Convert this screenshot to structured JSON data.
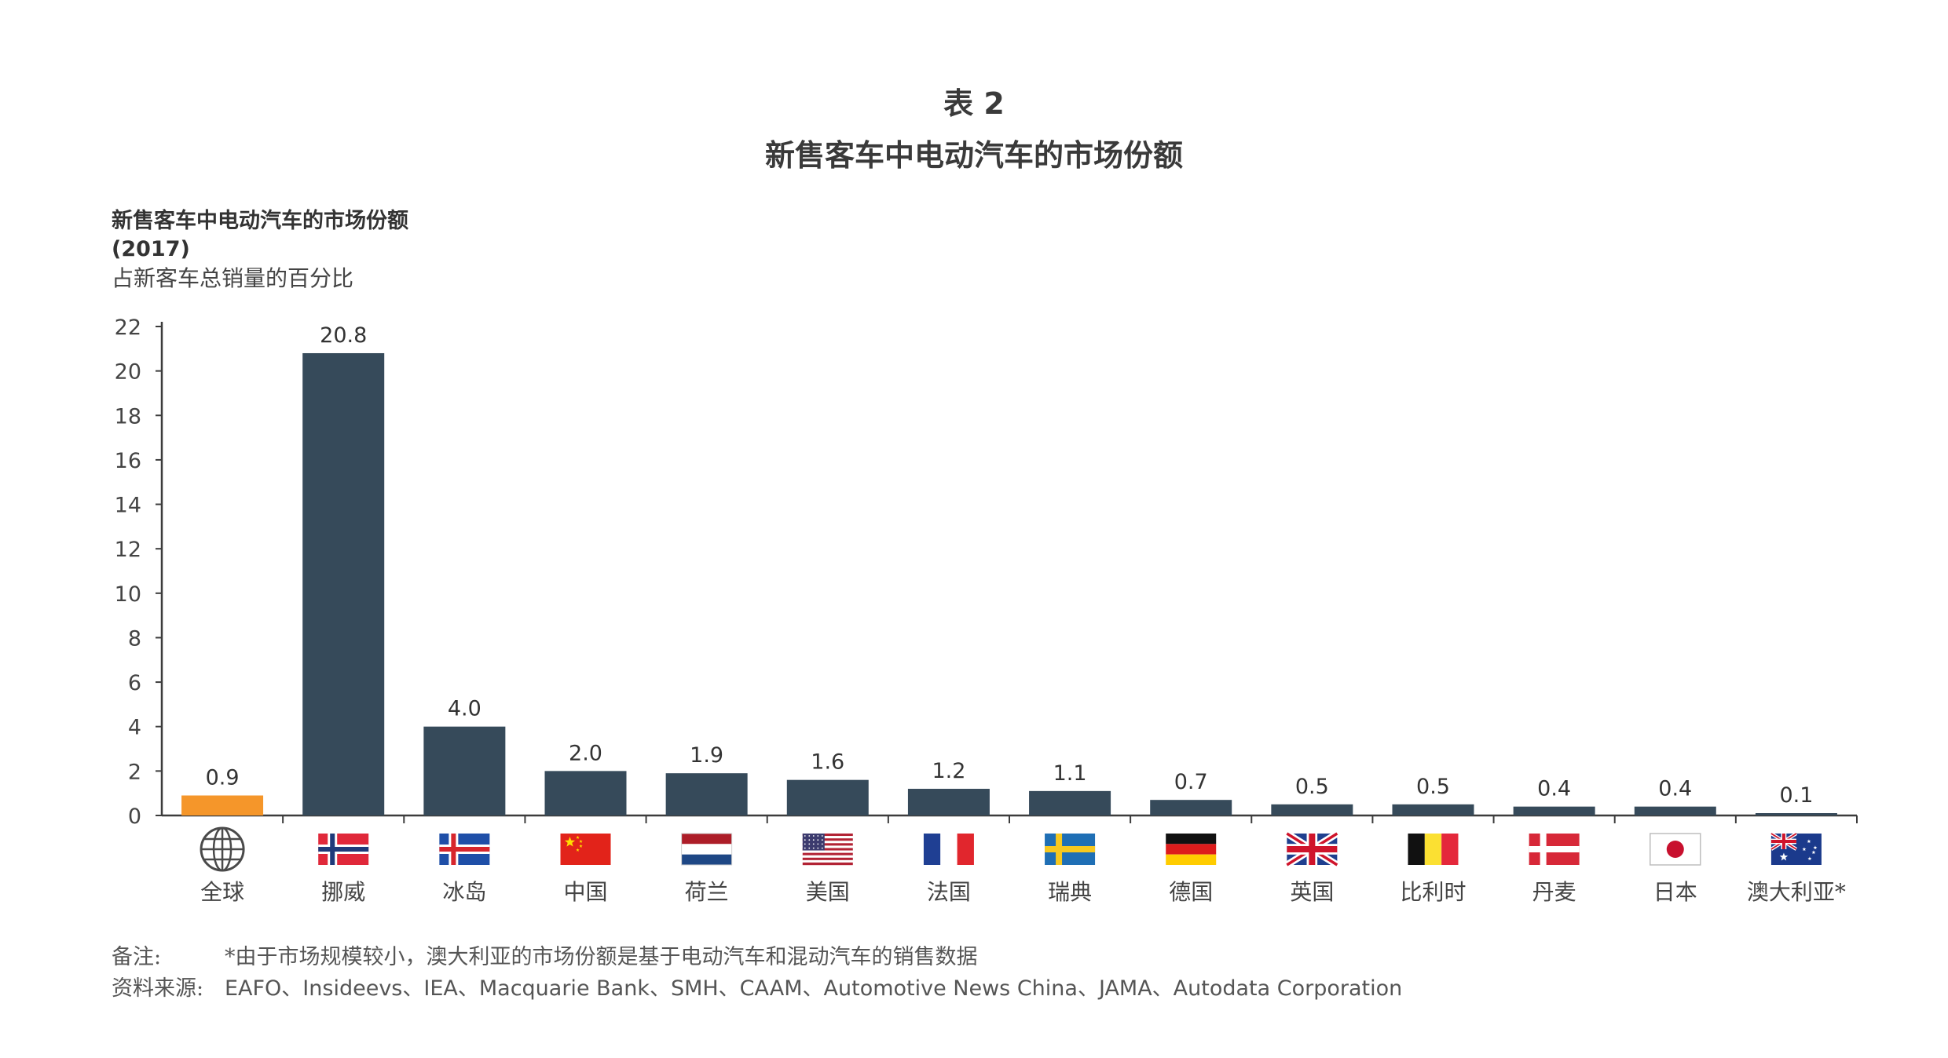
{
  "header": {
    "title_line1": "表 2",
    "title_line2": "新售客车中电动汽车的市场份额"
  },
  "subtitle": {
    "line1": "新售客车中电动汽车的市场份额",
    "line2": "(2017)",
    "line3": "占新客车总销量的百分比"
  },
  "chart_data": {
    "type": "bar",
    "title": "新售客车中电动汽车的市场份额",
    "ylabel": "",
    "xlabel": "",
    "ylim": [
      0,
      22
    ],
    "yticks": [
      0,
      2,
      4,
      6,
      8,
      10,
      12,
      14,
      16,
      18,
      20,
      22
    ],
    "categories": [
      "全球",
      "挪威",
      "冰岛",
      "中国",
      "荷兰",
      "美国",
      "法国",
      "瑞典",
      "德国",
      "英国",
      "比利时",
      "丹麦",
      "日本",
      "澳大利亚*"
    ],
    "values": [
      0.9,
      20.8,
      4.0,
      2.0,
      1.9,
      1.6,
      1.2,
      1.1,
      0.7,
      0.5,
      0.5,
      0.4,
      0.4,
      0.1
    ],
    "value_labels": [
      "0.9",
      "20.8",
      "4.0",
      "2.0",
      "1.9",
      "1.6",
      "1.2",
      "1.1",
      "0.7",
      "0.5",
      "0.5",
      "0.4",
      "0.4",
      "0.1"
    ],
    "icons": [
      "globe-icon",
      "norway-flag-icon",
      "iceland-flag-icon",
      "china-flag-icon",
      "netherlands-flag-icon",
      "usa-flag-icon",
      "france-flag-icon",
      "sweden-flag-icon",
      "germany-flag-icon",
      "uk-flag-icon",
      "belgium-flag-icon",
      "denmark-flag-icon",
      "japan-flag-icon",
      "australia-flag-icon"
    ],
    "colors": {
      "highlight": "#f5962a",
      "bar": "#364a5a",
      "axis": "#3c3c3c"
    },
    "grid": false,
    "legend": "none"
  },
  "notes": {
    "note_label": "备注:",
    "note_text": "*由于市场规模较小，澳大利亚的市场份额是基于电动汽车和混动汽车的销售数据",
    "source_label": "资料来源:",
    "source_text": "EAFO、Insideevs、IEA、Macquarie Bank、SMH、CAAM、Automotive News China、JAMA、Autodata Corporation"
  }
}
